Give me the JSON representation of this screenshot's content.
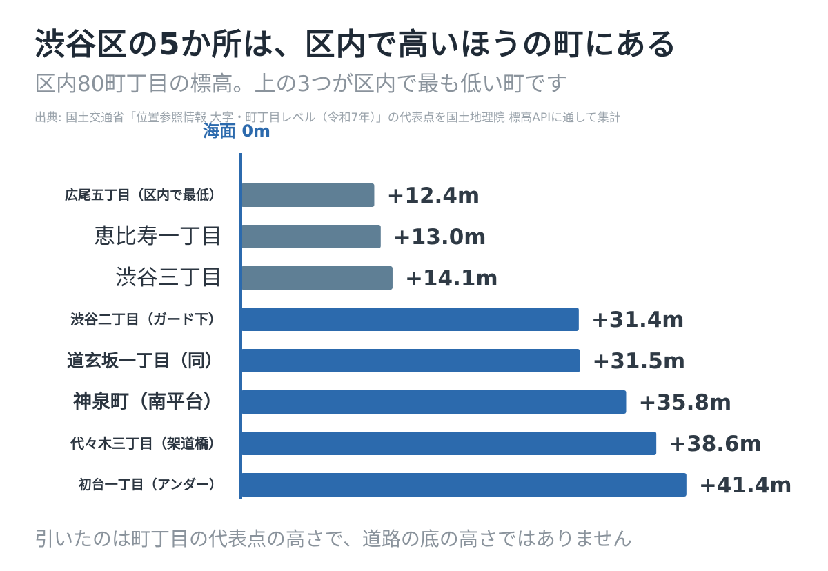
{
  "title": "渋谷区の5か所は、区内で高いほうの町にある",
  "subtitle": "区内80町丁目の標高。上の3つが区内で最も低い町です",
  "source": "出典: 国土交通省「位置参照情報 大字・町丁目レベル（令和7年）」の代表点を国土地理院 標高APIに通して集計",
  "footer": "引いたのは町丁目の代表点の高さで、道路の底の高さではありません",
  "colors": {
    "low": "#5f7f95",
    "high": "#2c6aad",
    "axis": "#2c6aad",
    "text": "#2f3a45"
  },
  "chart_data": {
    "type": "bar",
    "orientation": "horizontal",
    "baseline_label": "海面 0m",
    "xlim": [
      0,
      50
    ],
    "categories": [
      "広尾五丁目（区内で最低）",
      "恵比寿一丁目",
      "渋谷三丁目",
      "渋谷二丁目（ガード下）",
      "道玄坂一丁目（同）",
      "神泉町（南平台）",
      "代々木三丁目（架道橋）",
      "初台一丁目（アンダー）"
    ],
    "values": [
      12.4,
      13.0,
      14.1,
      31.4,
      31.5,
      35.8,
      38.6,
      41.4
    ],
    "value_labels": [
      "+12.4m",
      "+13.0m",
      "+14.1m",
      "+31.4m",
      "+31.5m",
      "+35.8m",
      "+38.6m",
      "+41.4m"
    ],
    "groups": [
      "low",
      "low",
      "low",
      "high",
      "high",
      "high",
      "high",
      "high"
    ]
  }
}
